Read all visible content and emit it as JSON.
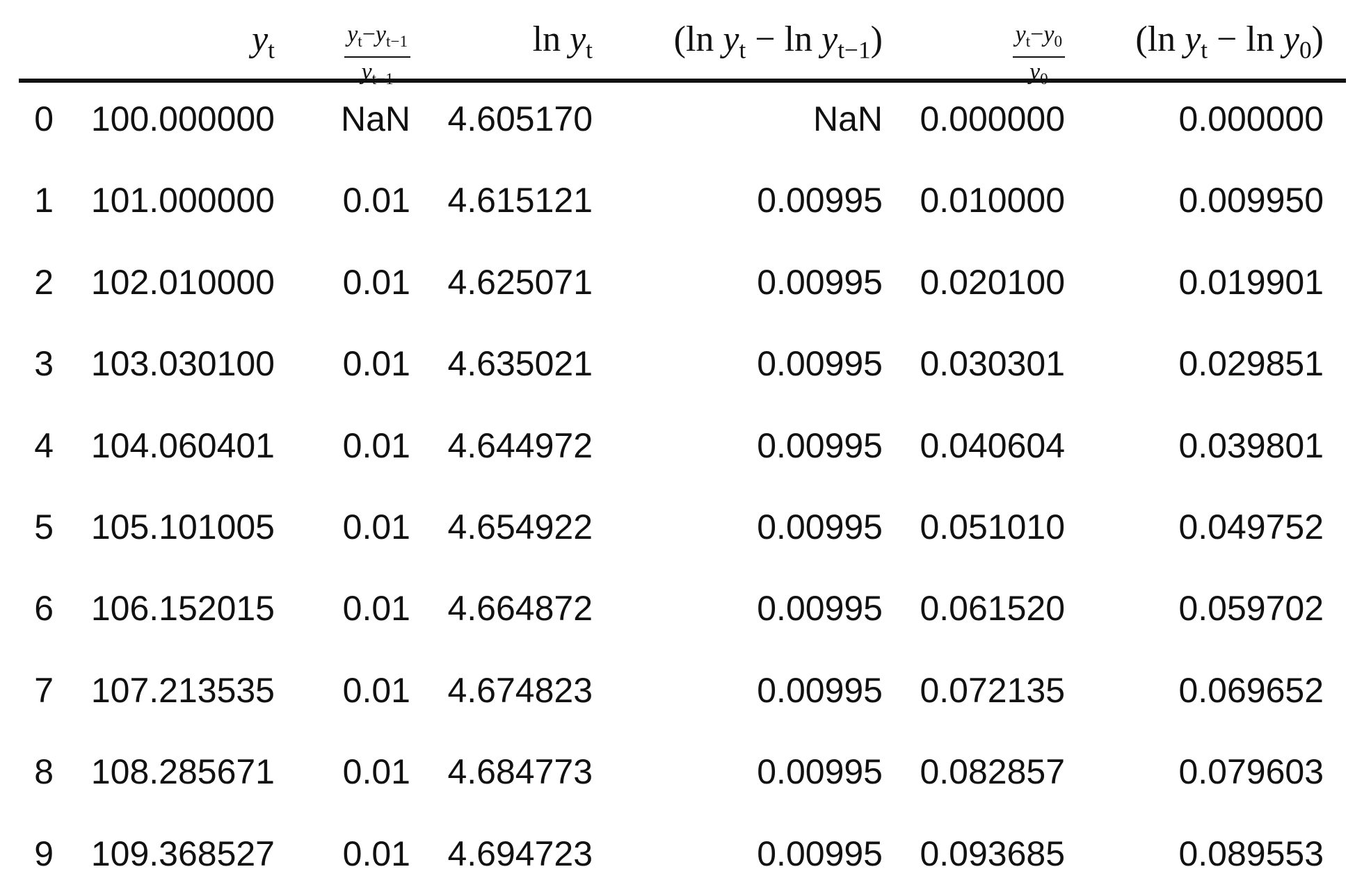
{
  "table": {
    "headers": [
      null,
      {
        "tokens": [
          {
            "text": "y",
            "sub": "t"
          }
        ]
      },
      {
        "num": [
          {
            "text": "y",
            "sub": "t"
          },
          {
            "text": "−"
          },
          {
            "text": "y",
            "sub": "t−1"
          }
        ],
        "den": [
          {
            "text": "y",
            "sub": "t−1"
          }
        ]
      },
      {
        "tokens": [
          {
            "text": "ln "
          },
          {
            "text": "y",
            "sub": "t"
          }
        ]
      },
      {
        "tokens": [
          {
            "text": "(ln "
          },
          {
            "text": "y",
            "sub": "t"
          },
          {
            "text": " − ln "
          },
          {
            "text": "y",
            "sub": "t−1"
          },
          {
            "text": ")"
          }
        ]
      },
      {
        "num": [
          {
            "text": "y",
            "sub": "t"
          },
          {
            "text": "−"
          },
          {
            "text": "y",
            "sub": "0"
          }
        ],
        "den": [
          {
            "text": "y",
            "sub": "0"
          }
        ]
      },
      {
        "tokens": [
          {
            "text": "(ln "
          },
          {
            "text": "y",
            "sub": "t"
          },
          {
            "text": " − ln "
          },
          {
            "text": "y",
            "sub": "0"
          },
          {
            "text": ")"
          }
        ]
      }
    ],
    "rows": [
      [
        "0",
        "100.000000",
        "NaN",
        "4.605170",
        "NaN",
        "0.000000",
        "0.000000"
      ],
      [
        "1",
        "101.000000",
        "0.01",
        "4.615121",
        "0.00995",
        "0.010000",
        "0.009950"
      ],
      [
        "2",
        "102.010000",
        "0.01",
        "4.625071",
        "0.00995",
        "0.020100",
        "0.019901"
      ],
      [
        "3",
        "103.030100",
        "0.01",
        "4.635021",
        "0.00995",
        "0.030301",
        "0.029851"
      ],
      [
        "4",
        "104.060401",
        "0.01",
        "4.644972",
        "0.00995",
        "0.040604",
        "0.039801"
      ],
      [
        "5",
        "105.101005",
        "0.01",
        "4.654922",
        "0.00995",
        "0.051010",
        "0.049752"
      ],
      [
        "6",
        "106.152015",
        "0.01",
        "4.664872",
        "0.00995",
        "0.061520",
        "0.059702"
      ],
      [
        "7",
        "107.213535",
        "0.01",
        "4.674823",
        "0.00995",
        "0.072135",
        "0.069652"
      ],
      [
        "8",
        "108.285671",
        "0.01",
        "4.684773",
        "0.00995",
        "0.082857",
        "0.079603"
      ],
      [
        "9",
        "109.368527",
        "0.01",
        "4.694723",
        "0.00995",
        "0.093685",
        "0.089553"
      ]
    ]
  }
}
